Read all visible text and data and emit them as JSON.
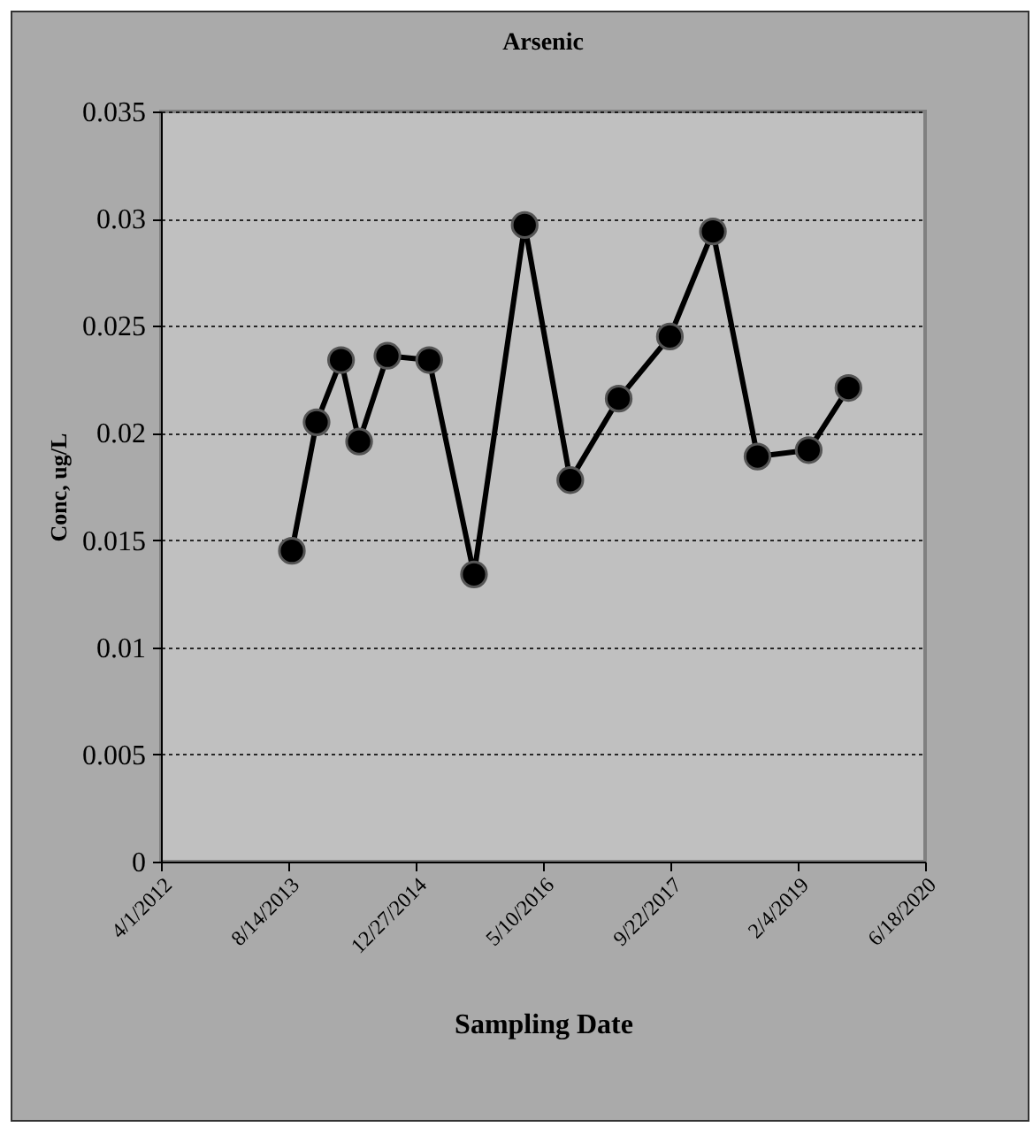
{
  "chart_data": {
    "type": "line",
    "title": "Arsenic",
    "xlabel": "Sampling Date",
    "ylabel": "Conc, ug/L",
    "x": [
      "2013-08-28",
      "2013-12-03",
      "2014-03-09",
      "2014-05-19",
      "2014-09-07",
      "2015-02-18",
      "2015-08-13",
      "2016-02-28",
      "2016-08-25",
      "2017-03-03",
      "2017-09-20",
      "2018-03-08",
      "2018-08-30",
      "2019-03-19",
      "2019-08-22"
    ],
    "series": [
      {
        "color": "#000000",
        "values": [
          0.0145,
          0.0205,
          0.0234,
          0.0196,
          0.0236,
          0.0234,
          0.0134,
          0.0297,
          0.0178,
          0.0216,
          0.0245,
          0.0294,
          0.0189,
          0.0192,
          0.0221
        ]
      }
    ],
    "xlim": [
      "2012-04-01",
      "2020-06-18"
    ],
    "xticks": [
      {
        "value": "2012-04-01",
        "label": "4/1/2012"
      },
      {
        "value": "2013-08-14",
        "label": "8/14/2013"
      },
      {
        "value": "2014-12-27",
        "label": "12/27/2014"
      },
      {
        "value": "2016-05-10",
        "label": "5/10/2016"
      },
      {
        "value": "2017-09-22",
        "label": "9/22/2017"
      },
      {
        "value": "2019-02-04",
        "label": "2/4/2019"
      },
      {
        "value": "2020-06-18",
        "label": "6/18/2020"
      }
    ],
    "ylim": [
      0,
      0.035
    ],
    "yticks": [
      0,
      0.005,
      0.01,
      0.015,
      0.02,
      0.025,
      0.03,
      0.035
    ],
    "grid": "y",
    "marker": "circle",
    "line_style": "solid"
  }
}
